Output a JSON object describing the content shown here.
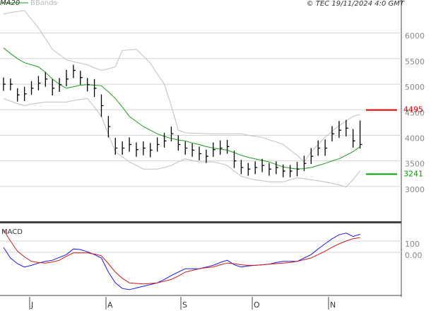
{
  "chart_data": [
    {
      "type": "ohlc",
      "copyright": "© TEC 19/11/2024 4:0 GMT",
      "bars": {
        "color": "#000000",
        "high": [
          5130,
          5110,
          4920,
          4950,
          5060,
          5160,
          5240,
          5100,
          5120,
          5280,
          5380,
          5260,
          5120,
          5100,
          4800,
          4380,
          3950,
          3880,
          3960,
          3860,
          3880,
          3850,
          3960,
          4050,
          4170,
          4000,
          3880,
          3840,
          3780,
          3720,
          3860,
          3900,
          3910,
          3700,
          3520,
          3460,
          3490,
          3540,
          3460,
          3490,
          3430,
          3420,
          3480,
          3600,
          3750,
          3900,
          3920,
          4180,
          4280,
          4300,
          4120,
          4290
        ],
        "low": [
          4870,
          4880,
          4660,
          4670,
          4790,
          4880,
          4950,
          4780,
          4850,
          4960,
          5120,
          4990,
          4860,
          4750,
          4360,
          3960,
          3620,
          3620,
          3680,
          3580,
          3610,
          3570,
          3680,
          3760,
          3880,
          3700,
          3620,
          3580,
          3510,
          3460,
          3580,
          3620,
          3640,
          3360,
          3240,
          3210,
          3240,
          3280,
          3210,
          3240,
          3180,
          3180,
          3200,
          3300,
          3440,
          3600,
          3600,
          3880,
          3950,
          3980,
          3760,
          3740
        ],
        "close": [
          5000,
          5000,
          4790,
          4810,
          4920,
          5020,
          5100,
          4920,
          4990,
          5100,
          5270,
          5130,
          4990,
          4920,
          4580,
          4170,
          3750,
          3750,
          3820,
          3720,
          3750,
          3710,
          3820,
          3890,
          4030,
          3820,
          3750,
          3710,
          3640,
          3590,
          3720,
          3750,
          3780,
          3500,
          3370,
          3340,
          3370,
          3410,
          3340,
          3370,
          3300,
          3300,
          3340,
          3450,
          3590,
          3750,
          3750,
          4030,
          4100,
          4140,
          3890,
          3820
        ]
      },
      "series": [
        {
          "name": "MA20",
          "color": "#1a9e1a",
          "values": [
            5710,
            5600,
            5500,
            5420,
            5380,
            5340,
            5230,
            5100,
            5000,
            4920,
            4950,
            4980,
            4990,
            4980,
            4970,
            4850,
            4720,
            4550,
            4370,
            4270,
            4170,
            4100,
            4030,
            3980,
            3940,
            3910,
            3890,
            3850,
            3820,
            3780,
            3750,
            3730,
            3710,
            3660,
            3610,
            3570,
            3540,
            3510,
            3480,
            3430,
            3380,
            3360,
            3340,
            3350,
            3370,
            3410,
            3450,
            3500,
            3540,
            3610,
            3680,
            3780
          ]
        },
        {
          "name": "BBands",
          "color": "#c0c0c0",
          "upper": [
            6370,
            6400,
            6420,
            6440,
            6270,
            6100,
            5890,
            5680,
            5580,
            5480,
            5440,
            5410,
            5380,
            5320,
            5270,
            5300,
            5340,
            5660,
            5670,
            5680,
            5550,
            5410,
            5200,
            5000,
            4580,
            4100,
            4050,
            4040,
            4040,
            4030,
            4030,
            4030,
            4030,
            4030,
            4030,
            4000,
            3980,
            3960,
            3910,
            3870,
            3820,
            3710,
            3610,
            3480,
            3680,
            3820,
            3960,
            4080,
            4190,
            4280,
            4370,
            4410
          ],
          "lower": [
            4720,
            4670,
            4620,
            4580,
            4610,
            4630,
            4650,
            4650,
            4650,
            4650,
            4680,
            4700,
            4720,
            4550,
            4370,
            4020,
            3680,
            3580,
            3480,
            3410,
            3340,
            3340,
            3340,
            3370,
            3410,
            3480,
            3540,
            3510,
            3480,
            3480,
            3480,
            3450,
            3410,
            3300,
            3200,
            3160,
            3130,
            3110,
            3090,
            3090,
            3090,
            3130,
            3170,
            3150,
            3130,
            3110,
            3090,
            3060,
            3030,
            2990,
            3130,
            3310
          ]
        }
      ],
      "levels": [
        {
          "value": 4495,
          "color": "#dd0000"
        },
        {
          "value": 3241,
          "color": "#00a000"
        }
      ],
      "xlim": [
        -0.5,
        56.9
      ],
      "xticks": [
        {
          "value": 3.74,
          "label": "J"
        },
        {
          "value": 14.66,
          "label": "A"
        },
        {
          "value": 25.37,
          "label": "S"
        },
        {
          "value": 35.58,
          "label": "O"
        },
        {
          "value": 46.49,
          "label": "N"
        }
      ],
      "ylim": [
        2320,
        6480
      ],
      "yticks": [
        3000,
        3500,
        4000,
        4500,
        5000,
        5500,
        6000
      ],
      "grid": true
    },
    {
      "type": "line",
      "title": "MACD",
      "series": [
        {
          "color": "#1a1aee",
          "values": [
            44,
            -50,
            -100,
            -130,
            -115,
            -95,
            -80,
            -70,
            -45,
            -20,
            30,
            25,
            5,
            -20,
            -50,
            -175,
            -270,
            -320,
            -330,
            -315,
            -300,
            -285,
            -270,
            -240,
            -205,
            -175,
            -145,
            -145,
            -145,
            -130,
            -115,
            -90,
            -70,
            -110,
            -130,
            -120,
            -115,
            -110,
            -105,
            -90,
            -80,
            -80,
            -80,
            -50,
            -20,
            30,
            75,
            120,
            155,
            170,
            140,
            160
          ]
        },
        {
          "color": "#cc1a1a",
          "values": [
            200,
            100,
            10,
            -40,
            -80,
            -90,
            -95,
            -85,
            -70,
            -35,
            -5,
            -5,
            -5,
            -15,
            -30,
            -100,
            -175,
            -230,
            -270,
            -275,
            -280,
            -275,
            -270,
            -255,
            -240,
            -210,
            -175,
            -160,
            -145,
            -135,
            -130,
            -110,
            -95,
            -100,
            -110,
            -115,
            -115,
            -110,
            -105,
            -100,
            -95,
            -90,
            -80,
            -65,
            -50,
            -20,
            10,
            45,
            75,
            100,
            120,
            130
          ]
        }
      ],
      "xlim": [
        -0.5,
        56.9
      ],
      "ylim": [
        -381,
        256
      ],
      "yticks": [
        {
          "value": 0,
          "label": "0.00"
        },
        100
      ],
      "grid": true
    }
  ]
}
